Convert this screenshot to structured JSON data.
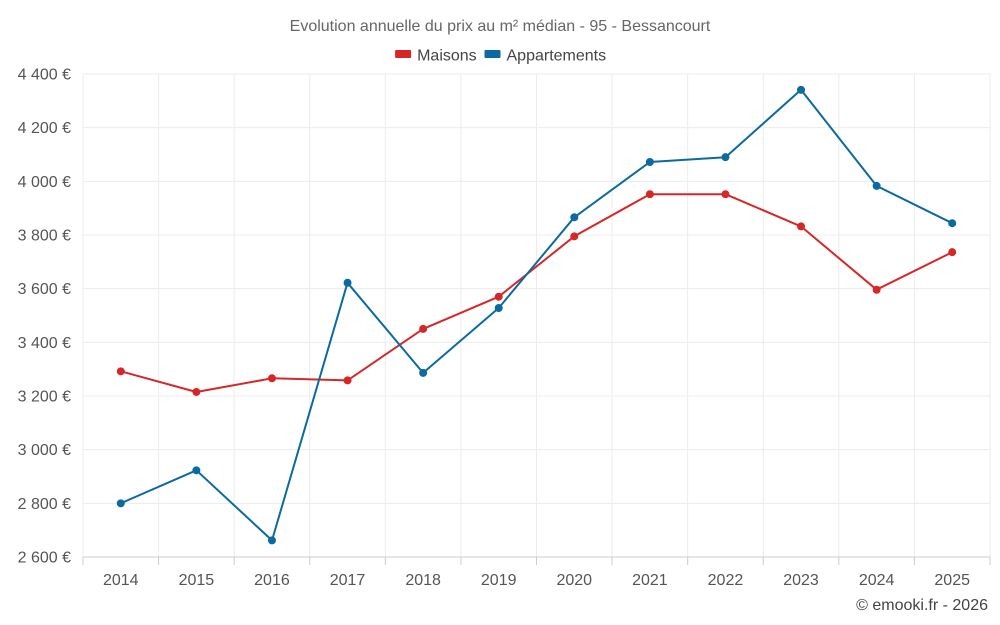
{
  "chart_data": {
    "type": "line",
    "title": "Evolution annuelle du prix au m² médian - 95 - Bessancourt",
    "categories": [
      "2014",
      "2015",
      "2016",
      "2017",
      "2018",
      "2019",
      "2020",
      "2021",
      "2022",
      "2023",
      "2024",
      "2025"
    ],
    "series": [
      {
        "name": "Maisons",
        "color": "#d62728",
        "values": [
          3292,
          3215,
          3266,
          3258,
          3450,
          3570,
          3795,
          3952,
          3952,
          3832,
          3596,
          3736
        ]
      },
      {
        "name": "Appartements",
        "color": "#0b6aa0",
        "values": [
          2800,
          2923,
          2662,
          3622,
          3286,
          3528,
          3866,
          4072,
          4090,
          4341,
          3983,
          3844
        ]
      }
    ],
    "ylim": [
      2600,
      4400
    ],
    "yticks": [
      2600,
      2800,
      3000,
      3200,
      3400,
      3600,
      3800,
      4000,
      4200,
      4400
    ],
    "ytick_labels": [
      "2 600 €",
      "2 800 €",
      "3 000 €",
      "3 200 €",
      "3 400 €",
      "3 600 €",
      "3 800 €",
      "4 000 €",
      "4 200 €",
      "4 400 €"
    ],
    "xlabel": "",
    "ylabel": "",
    "grid": true,
    "legend_position": "top-center"
  },
  "credit": "© emooki.fr - 2026"
}
